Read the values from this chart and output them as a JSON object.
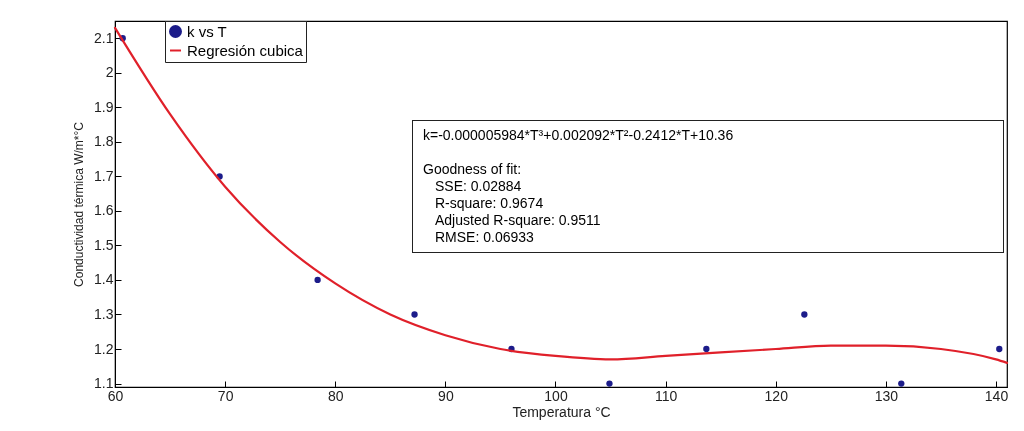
{
  "chart_data": {
    "type": "scatter",
    "xlabel": "Temperatura °C",
    "ylabel": "Conductividad térmica W/m*°C",
    "xlim": [
      60,
      141
    ],
    "xticks": [
      60,
      70,
      80,
      90,
      100,
      110,
      120,
      130,
      140
    ],
    "ylim": [
      1.09,
      2.15
    ],
    "yticks": [
      1.1,
      1.2,
      1.3,
      1.4,
      1.5,
      1.6,
      1.7,
      1.8,
      1.9,
      2,
      2.1
    ],
    "grid": false,
    "legend": "top left",
    "series": [
      {
        "name": "k vs T",
        "marker": "circle",
        "color": "#1c1c8a",
        "x": [
          60.7,
          69.5,
          78.4,
          87.2,
          96,
          104.9,
          113.7,
          122.6,
          131.4,
          140.3
        ],
        "values": [
          2.1,
          1.7,
          1.4,
          1.3,
          1.2,
          1.1,
          1.2,
          1.3,
          1.1,
          1.2
        ]
      },
      {
        "name": "Regresión cubica",
        "type": "line",
        "line_style": "solid",
        "color": "#e0202a",
        "x": [
          60,
          65,
          70,
          75,
          80,
          85,
          90,
          95,
          100,
          105,
          110,
          115,
          120,
          125,
          130,
          135,
          140,
          141
        ],
        "values": [
          2.13,
          1.88,
          1.67,
          1.51,
          1.39,
          1.3,
          1.24,
          1.2,
          1.18,
          1.17,
          1.18,
          1.19,
          1.2,
          1.21,
          1.21,
          1.2,
          1.17,
          1.16
        ]
      }
    ],
    "annotations": [
      "k=-0.000005984*T³+0.002092*T²-0.2412*T+10.36",
      "Goodness of fit:",
      "SSE: 0.02884",
      "R-square: 0.9674",
      "Adjusted R-square: 0.9511",
      "RMSE: 0.06933"
    ]
  }
}
